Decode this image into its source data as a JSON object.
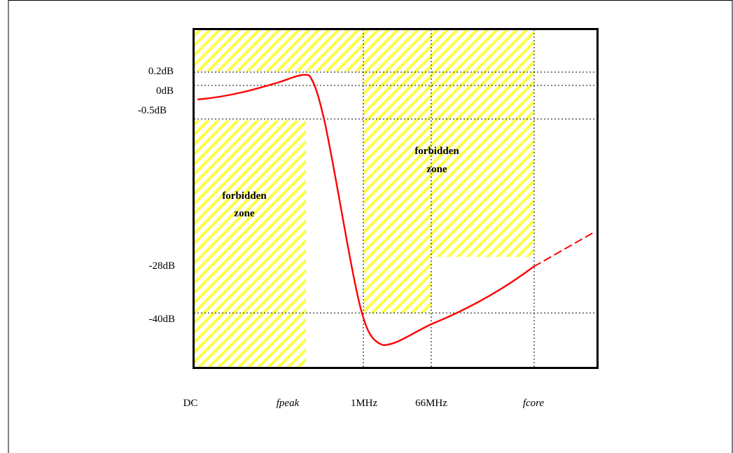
{
  "chart_data": {
    "type": "line",
    "title": "",
    "xlabel": "",
    "ylabel": "",
    "x_ticks": [
      "DC",
      "fpeak",
      "1MHz",
      "66MHz",
      "fcore"
    ],
    "y_ticks": [
      "0.2dB",
      "0dB",
      "-0.5dB",
      "-28dB",
      "-40dB"
    ],
    "zones": [
      {
        "label_lines": [
          "forbidden",
          "zone"
        ],
        "position": "lower-left"
      },
      {
        "label_lines": [
          "forbidden",
          "zone"
        ],
        "position": "upper-middle"
      }
    ],
    "series": [
      {
        "color": "#ff0000",
        "style": "solid-then-dashed",
        "points_description": "curve rises slightly from DC to a peak near 0.2dB at fpeak, falls steeply below -40dB just after 1MHz, then rises gradually through -40dB near 66MHz to about -28dB at fcore, continuing dashed beyond fcore"
      }
    ],
    "colors": {
      "curve": "#ff0000",
      "hatch": "#ffff40",
      "grid": "#000000"
    },
    "grid": true
  }
}
